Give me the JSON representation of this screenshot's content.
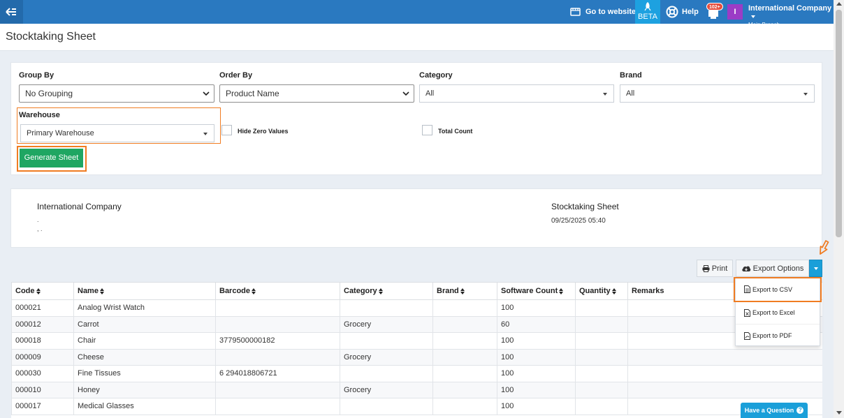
{
  "topbar": {
    "go_to_website": "Go to website",
    "beta": "BETA",
    "help": "Help",
    "notifications_count": "102+",
    "avatar_initial": "I",
    "company_name": "International Company",
    "branch": "Main Branch"
  },
  "page": {
    "title": "Stocktaking Sheet"
  },
  "filters": {
    "group_by": {
      "label": "Group By",
      "value": "No Grouping"
    },
    "order_by": {
      "label": "Order By",
      "value": "Product Name"
    },
    "category": {
      "label": "Category",
      "value": "All"
    },
    "brand": {
      "label": "Brand",
      "value": "All"
    },
    "warehouse": {
      "label": "Warehouse",
      "value": "Primary Warehouse"
    },
    "hide_zero_values": "Hide Zero Values",
    "total_count": "Total Count",
    "generate_button": "Generate Sheet"
  },
  "info": {
    "company": "International Company",
    "address_line1": ".",
    "address_line2": ", .",
    "sheet_title": "Stocktaking Sheet",
    "date": "09/25/2025 05:40"
  },
  "actions": {
    "print": "Print",
    "export_options": "Export Options"
  },
  "export_menu": {
    "csv": "Export to CSV",
    "excel": "Export to Excel",
    "pdf": "Export to PDF"
  },
  "table": {
    "headers": {
      "code": "Code",
      "name": "Name",
      "barcode": "Barcode",
      "category": "Category",
      "brand": "Brand",
      "software_count": "Software Count",
      "quantity": "Quantity",
      "remarks": "Remarks"
    },
    "rows": [
      {
        "code": "000021",
        "name": "Analog Wrist Watch",
        "barcode": "",
        "category": "",
        "brand": "",
        "software_count": "100",
        "quantity": "",
        "remarks": ""
      },
      {
        "code": "000012",
        "name": "Carrot",
        "barcode": "",
        "category": "Grocery",
        "brand": "",
        "software_count": "60",
        "quantity": "",
        "remarks": ""
      },
      {
        "code": "000018",
        "name": "Chair",
        "barcode": "3779500000182",
        "category": "",
        "brand": "",
        "software_count": "100",
        "quantity": "",
        "remarks": ""
      },
      {
        "code": "000009",
        "name": "Cheese",
        "barcode": "",
        "category": "Grocery",
        "brand": "",
        "software_count": "100",
        "quantity": "",
        "remarks": ""
      },
      {
        "code": "000030",
        "name": "Fine Tissues",
        "barcode": "6 294018806721",
        "category": "",
        "brand": "",
        "software_count": "100",
        "quantity": "",
        "remarks": ""
      },
      {
        "code": "000010",
        "name": "Honey",
        "barcode": "",
        "category": "Grocery",
        "brand": "",
        "software_count": "100",
        "quantity": "",
        "remarks": ""
      },
      {
        "code": "000017",
        "name": "Medical Glasses",
        "barcode": "",
        "category": "",
        "brand": "",
        "software_count": "100",
        "quantity": "",
        "remarks": ""
      }
    ]
  },
  "help_widget": {
    "label": "Have a Question"
  },
  "colors": {
    "topbar": "#2a79c0",
    "beta": "#1da1e0",
    "generate": "#1fa662",
    "highlight": "#f07c22",
    "accent": "#1a9fd9"
  }
}
